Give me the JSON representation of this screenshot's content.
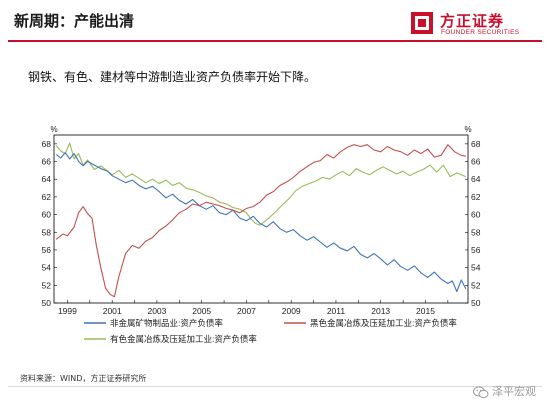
{
  "header": {
    "title": "新周期：产能出清",
    "logo_name": "方正证券",
    "logo_en": "FOUNDER SECURITIES",
    "accent": "#c8102e"
  },
  "subtitle": "钢铁、有色、建材等中游制造业资产负债率开始下降。",
  "source": "资料来源：WIND，方正证券研究所",
  "watermark": {
    "text": "泽平宏观",
    "icon": "wechat-icon"
  },
  "chart_data": {
    "type": "line",
    "left_unit": "%",
    "right_unit": "%",
    "ylim": [
      50,
      69
    ],
    "y_ticks": [
      50,
      52,
      54,
      56,
      58,
      60,
      62,
      64,
      66,
      68
    ],
    "xlim": [
      1998.4,
      2016.9
    ],
    "x_ticks": [
      "1999",
      "2001",
      "2003",
      "2005",
      "2007",
      "2009",
      "2011",
      "2013",
      "2015"
    ],
    "grid": false,
    "legend_position": "bottom",
    "series": [
      {
        "name": "非金属矿物制品业:资产负债率",
        "color": "#3f74b9",
        "x": [
          1998.5,
          1998.7,
          1998.9,
          1999.1,
          1999.3,
          1999.5,
          1999.7,
          1999.9,
          2000.2,
          2000.5,
          2000.8,
          2001.0,
          2001.3,
          2001.6,
          2001.9,
          2002.2,
          2002.5,
          2002.8,
          2003.1,
          2003.4,
          2003.7,
          2004.0,
          2004.3,
          2004.6,
          2004.9,
          2005.2,
          2005.5,
          2005.8,
          2006.1,
          2006.4,
          2006.7,
          2007.0,
          2007.3,
          2007.6,
          2007.9,
          2008.2,
          2008.5,
          2008.8,
          2009.1,
          2009.4,
          2009.7,
          2010.0,
          2010.3,
          2010.6,
          2010.9,
          2011.2,
          2011.5,
          2011.8,
          2012.1,
          2012.4,
          2012.7,
          2013.0,
          2013.3,
          2013.6,
          2013.9,
          2014.2,
          2014.5,
          2014.8,
          2015.1,
          2015.4,
          2015.7,
          2016.0,
          2016.2,
          2016.4,
          2016.6,
          2016.8
        ],
        "y": [
          66.8,
          66.4,
          67.0,
          66.3,
          66.9,
          66.0,
          65.5,
          66.0,
          65.6,
          65.2,
          64.9,
          64.4,
          64.0,
          63.6,
          63.9,
          63.3,
          62.9,
          63.2,
          62.6,
          61.9,
          62.3,
          61.6,
          61.2,
          61.7,
          61.0,
          60.6,
          61.0,
          60.2,
          60.0,
          60.5,
          59.6,
          59.3,
          59.8,
          59.0,
          58.6,
          59.2,
          58.4,
          58.0,
          58.3,
          57.6,
          57.1,
          57.5,
          56.9,
          56.3,
          56.8,
          56.2,
          55.9,
          56.4,
          55.5,
          55.1,
          55.6,
          55.0,
          54.3,
          54.9,
          54.1,
          53.7,
          54.2,
          53.4,
          52.9,
          53.5,
          52.7,
          52.2,
          52.5,
          51.3,
          52.6,
          51.6
        ]
      },
      {
        "name": "黑色金属冶炼及压延加工业:资产负债率",
        "color": "#c0504d",
        "x": [
          1998.5,
          1998.8,
          1999.0,
          1999.3,
          1999.5,
          1999.7,
          1999.9,
          2000.1,
          2000.3,
          2000.5,
          2000.7,
          2000.9,
          2001.1,
          2001.3,
          2001.6,
          2001.9,
          2002.2,
          2002.5,
          2002.8,
          2003.1,
          2003.4,
          2003.7,
          2004.0,
          2004.3,
          2004.6,
          2004.9,
          2005.2,
          2005.5,
          2005.8,
          2006.1,
          2006.4,
          2006.7,
          2007.0,
          2007.3,
          2007.6,
          2007.9,
          2008.2,
          2008.5,
          2008.8,
          2009.1,
          2009.4,
          2009.7,
          2010.0,
          2010.3,
          2010.6,
          2010.9,
          2011.2,
          2011.5,
          2011.8,
          2012.1,
          2012.4,
          2012.7,
          2013.0,
          2013.3,
          2013.6,
          2013.9,
          2014.2,
          2014.5,
          2014.8,
          2015.1,
          2015.4,
          2015.7,
          2016.0,
          2016.3,
          2016.6,
          2016.8
        ],
        "y": [
          57.2,
          57.8,
          57.6,
          58.6,
          60.2,
          60.9,
          60.1,
          59.6,
          56.4,
          53.9,
          51.7,
          51.0,
          50.7,
          53.0,
          55.6,
          56.5,
          56.2,
          57.0,
          57.4,
          58.2,
          58.7,
          59.4,
          60.2,
          60.6,
          61.2,
          61.0,
          61.4,
          61.2,
          61.0,
          60.7,
          60.5,
          60.2,
          60.7,
          60.9,
          61.4,
          62.2,
          62.6,
          63.3,
          63.7,
          64.2,
          64.9,
          65.4,
          65.9,
          66.1,
          66.8,
          66.4,
          67.1,
          67.6,
          67.9,
          67.7,
          67.9,
          67.3,
          67.1,
          67.7,
          67.3,
          67.1,
          66.7,
          67.3,
          66.9,
          67.4,
          66.5,
          66.7,
          67.9,
          67.1,
          66.7,
          66.6
        ]
      },
      {
        "name": "有色金属冶炼及压延加工业:资产负债率",
        "color": "#9bbb59",
        "x": [
          1998.5,
          1998.7,
          1998.9,
          1999.1,
          1999.3,
          1999.5,
          1999.7,
          1999.9,
          2000.2,
          2000.5,
          2000.8,
          2001.0,
          2001.3,
          2001.6,
          2001.9,
          2002.2,
          2002.5,
          2002.8,
          2003.1,
          2003.4,
          2003.7,
          2004.0,
          2004.3,
          2004.6,
          2004.9,
          2005.2,
          2005.5,
          2005.8,
          2006.1,
          2006.4,
          2006.7,
          2007.0,
          2007.2,
          2007.4,
          2007.6,
          2007.8,
          2008.0,
          2008.3,
          2008.6,
          2008.9,
          2009.2,
          2009.5,
          2009.8,
          2010.1,
          2010.4,
          2010.7,
          2011.0,
          2011.3,
          2011.6,
          2011.9,
          2012.2,
          2012.5,
          2012.8,
          2013.1,
          2013.4,
          2013.7,
          2014.0,
          2014.3,
          2014.6,
          2014.9,
          2015.2,
          2015.5,
          2015.8,
          2016.1,
          2016.4,
          2016.8
        ],
        "y": [
          67.8,
          67.2,
          66.9,
          68.1,
          66.3,
          66.9,
          65.6,
          66.2,
          65.1,
          65.5,
          64.9,
          64.5,
          65.0,
          64.2,
          64.6,
          64.1,
          63.6,
          64.0,
          63.5,
          63.9,
          63.3,
          63.6,
          63.0,
          62.8,
          62.5,
          62.1,
          61.9,
          61.4,
          61.2,
          60.8,
          60.6,
          60.2,
          59.5,
          59.0,
          58.8,
          59.2,
          59.6,
          60.3,
          61.1,
          61.8,
          62.7,
          63.2,
          63.5,
          63.8,
          64.2,
          64.0,
          64.5,
          64.9,
          64.4,
          65.2,
          64.8,
          64.5,
          65.0,
          65.4,
          65.0,
          64.6,
          64.9,
          64.4,
          64.8,
          65.1,
          65.6,
          64.8,
          65.6,
          64.3,
          64.7,
          64.3
        ]
      }
    ]
  }
}
